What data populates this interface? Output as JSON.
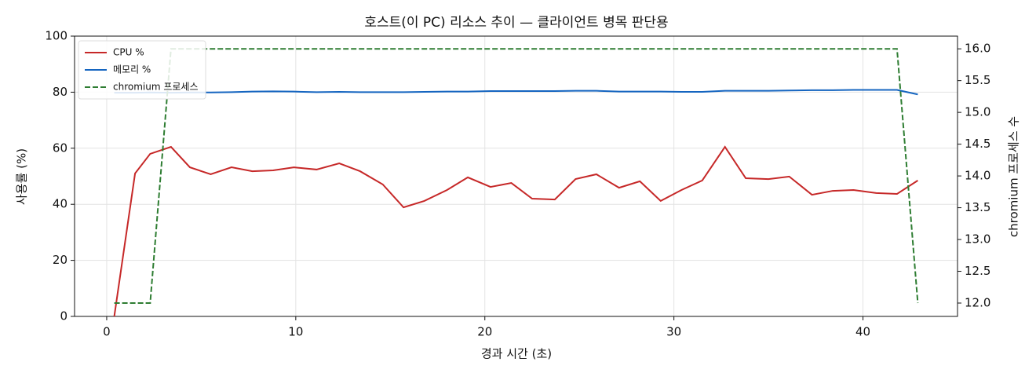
{
  "chart_data": {
    "type": "line",
    "title": "호스트(이 PC) 리소스 추이 — 클라이언트 병목 판단용",
    "xlabel": "경과 시간 (초)",
    "ylabel": "사용률 (%)",
    "y2label": "chromium 프로세스 수",
    "x": [
      0.4,
      1.5,
      2.3,
      3.4,
      4.4,
      5.5,
      6.6,
      7.7,
      8.8,
      9.9,
      11.1,
      12.3,
      13.4,
      14.6,
      15.7,
      16.8,
      18.0,
      19.1,
      20.3,
      21.4,
      22.5,
      23.7,
      24.8,
      25.9,
      27.1,
      28.2,
      29.3,
      30.4,
      31.5,
      32.7,
      33.8,
      35.0,
      36.1,
      37.3,
      38.4,
      39.5,
      40.7,
      41.8,
      42.9
    ],
    "series": [
      {
        "name": "CPU %",
        "color": "#c62828",
        "values": [
          0,
          51,
          58,
          60.5,
          53.2,
          50.7,
          53.2,
          51.8,
          52.1,
          53.2,
          52.4,
          54.6,
          51.8,
          47.1,
          38.9,
          41.2,
          45.1,
          49.6,
          46.2,
          47.6,
          42.0,
          41.7,
          49.0,
          50.7,
          45.9,
          48.2,
          41.2,
          45.1,
          48.5,
          60.5,
          49.3,
          49.0,
          49.9,
          43.4,
          44.8,
          45.1,
          44.0,
          43.7,
          48.5
        ]
      },
      {
        "name": "메모리 %",
        "color": "#1565c0",
        "values": [
          79.8,
          79.8,
          79.9,
          79.8,
          79.9,
          79.9,
          80.0,
          80.2,
          80.3,
          80.2,
          80.0,
          80.1,
          80.0,
          80.0,
          80.0,
          80.1,
          80.2,
          80.2,
          80.4,
          80.4,
          80.4,
          80.4,
          80.5,
          80.5,
          80.2,
          80.2,
          80.2,
          80.1,
          80.1,
          80.5,
          80.5,
          80.5,
          80.6,
          80.7,
          80.7,
          80.8,
          80.8,
          80.8,
          79.2
        ]
      },
      {
        "name": "chromium 프로세스",
        "color": "#2e7d32",
        "axis": "y2",
        "linestyle": "dashed",
        "values": [
          12,
          12,
          12,
          16,
          16,
          16,
          16,
          16,
          16,
          16,
          16,
          16,
          16,
          16,
          16,
          16,
          16,
          16,
          16,
          16,
          16,
          16,
          16,
          16,
          16,
          16,
          16,
          16,
          16,
          16,
          16,
          16,
          16,
          16,
          16,
          16,
          16,
          16,
          12
        ]
      }
    ],
    "xlim": [
      -1.7,
      45.0
    ],
    "xticks": [
      0,
      10,
      20,
      30,
      40
    ],
    "ylim": [
      0,
      100
    ],
    "yticks": [
      0,
      20,
      40,
      60,
      80,
      100
    ],
    "y2lim": [
      11.79,
      16.2
    ],
    "y2ticks": [
      {
        "value": 12,
        "label": "12.0"
      },
      {
        "value": 12.5,
        "label": "12.5"
      },
      {
        "value": 13,
        "label": "13.0"
      },
      {
        "value": 13.5,
        "label": "13.5"
      },
      {
        "value": 14,
        "label": "14.0"
      },
      {
        "value": 14.5,
        "label": "14.5"
      },
      {
        "value": 15,
        "label": "15.0"
      },
      {
        "value": 15.5,
        "label": "15.5"
      },
      {
        "value": 16,
        "label": "16.0"
      }
    ],
    "grid": true,
    "legend": "upper-left"
  }
}
